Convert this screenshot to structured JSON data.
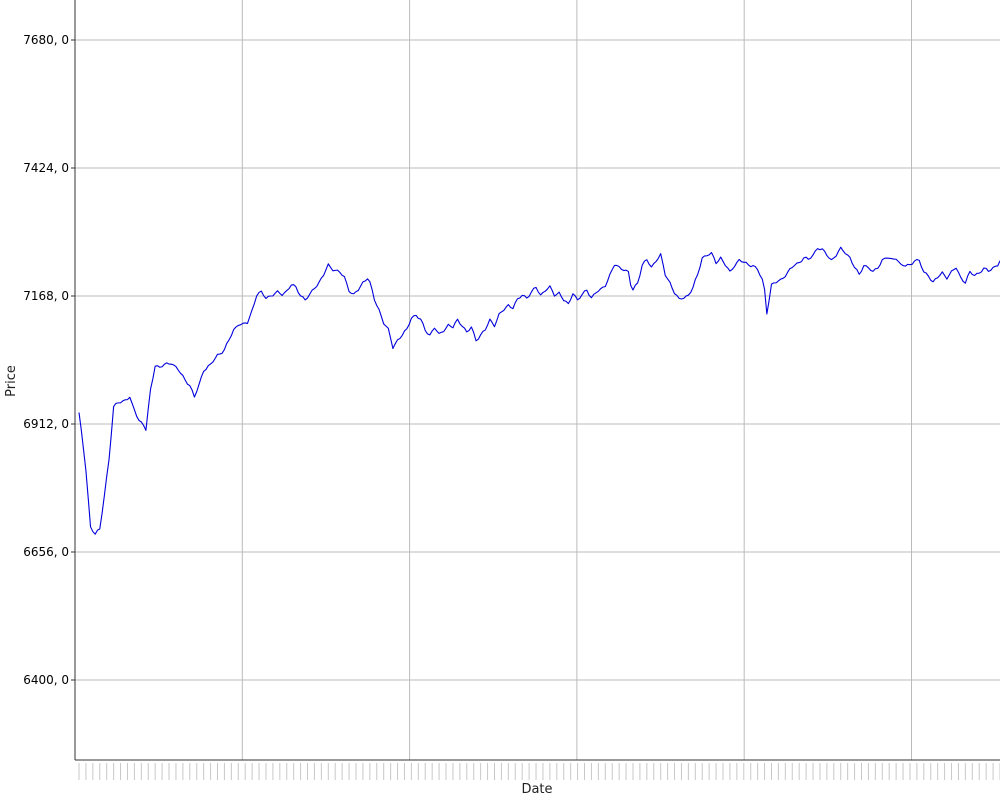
{
  "chart_data": {
    "type": "line",
    "title": "",
    "xlabel": "Date",
    "ylabel": "Price",
    "ylim": [
      6240,
      7760
    ],
    "yticks": [
      6400,
      6656,
      6912,
      7168,
      7424,
      7680
    ],
    "ytick_labels": [
      "6400, 0",
      "6656, 0",
      "6912, 0",
      "7168, 0",
      "7424, 0",
      "7680, 0"
    ],
    "grid": true,
    "line_color": "#0000dd",
    "grid_color": "#bbbbbb",
    "num_vertical_gridlines": 5,
    "num_points": 400,
    "keypoints": [
      [
        0,
        6935
      ],
      [
        3,
        6820
      ],
      [
        5,
        6706
      ],
      [
        7,
        6693
      ],
      [
        9,
        6700
      ],
      [
        11,
        6770
      ],
      [
        13,
        6842
      ],
      [
        15,
        6945
      ],
      [
        17,
        6955
      ],
      [
        19,
        6958
      ],
      [
        22,
        6965
      ],
      [
        23,
        6950
      ],
      [
        26,
        6920
      ],
      [
        28,
        6910
      ],
      [
        29,
        6900
      ],
      [
        31,
        6980
      ],
      [
        33,
        7030
      ],
      [
        35,
        7025
      ],
      [
        37,
        7030
      ],
      [
        40,
        7035
      ],
      [
        43,
        7020
      ],
      [
        46,
        7000
      ],
      [
        48,
        6990
      ],
      [
        50,
        6965
      ],
      [
        52,
        6990
      ],
      [
        54,
        7020
      ],
      [
        57,
        7030
      ],
      [
        60,
        7050
      ],
      [
        63,
        7060
      ],
      [
        65,
        7080
      ],
      [
        67,
        7100
      ],
      [
        69,
        7112
      ],
      [
        71,
        7110
      ],
      [
        73,
        7115
      ],
      [
        75,
        7140
      ],
      [
        77,
        7170
      ],
      [
        79,
        7175
      ],
      [
        81,
        7165
      ],
      [
        84,
        7170
      ],
      [
        86,
        7175
      ],
      [
        88,
        7172
      ],
      [
        90,
        7178
      ],
      [
        92,
        7190
      ],
      [
        94,
        7185
      ],
      [
        96,
        7170
      ],
      [
        98,
        7160
      ],
      [
        100,
        7170
      ],
      [
        102,
        7185
      ],
      [
        104,
        7195
      ],
      [
        106,
        7210
      ],
      [
        108,
        7230
      ],
      [
        110,
        7222
      ],
      [
        113,
        7215
      ],
      [
        115,
        7205
      ],
      [
        117,
        7180
      ],
      [
        119,
        7170
      ],
      [
        121,
        7180
      ],
      [
        123,
        7195
      ],
      [
        125,
        7205
      ],
      [
        126,
        7195
      ],
      [
        128,
        7160
      ],
      [
        130,
        7140
      ],
      [
        132,
        7115
      ],
      [
        134,
        7100
      ],
      [
        136,
        7065
      ],
      [
        138,
        7080
      ],
      [
        140,
        7090
      ],
      [
        142,
        7100
      ],
      [
        144,
        7125
      ],
      [
        146,
        7130
      ],
      [
        148,
        7120
      ],
      [
        150,
        7100
      ],
      [
        152,
        7090
      ],
      [
        154,
        7105
      ],
      [
        156,
        7090
      ],
      [
        158,
        7100
      ],
      [
        160,
        7110
      ],
      [
        162,
        7105
      ],
      [
        164,
        7120
      ],
      [
        166,
        7110
      ],
      [
        168,
        7095
      ],
      [
        170,
        7105
      ],
      [
        172,
        7080
      ],
      [
        174,
        7090
      ],
      [
        176,
        7100
      ],
      [
        178,
        7120
      ],
      [
        180,
        7110
      ],
      [
        182,
        7130
      ],
      [
        184,
        7140
      ],
      [
        186,
        7150
      ],
      [
        188,
        7145
      ],
      [
        190,
        7160
      ],
      [
        192,
        7170
      ],
      [
        194,
        7165
      ],
      [
        196,
        7175
      ],
      [
        198,
        7185
      ],
      [
        200,
        7170
      ],
      [
        202,
        7180
      ],
      [
        204,
        7185
      ],
      [
        206,
        7170
      ],
      [
        208,
        7175
      ],
      [
        210,
        7160
      ],
      [
        212,
        7150
      ],
      [
        214,
        7175
      ],
      [
        216,
        7160
      ],
      [
        218,
        7170
      ],
      [
        220,
        7180
      ],
      [
        222,
        7165
      ],
      [
        224,
        7175
      ],
      [
        226,
        7180
      ],
      [
        228,
        7190
      ],
      [
        230,
        7210
      ],
      [
        232,
        7230
      ],
      [
        234,
        7225
      ],
      [
        236,
        7222
      ],
      [
        238,
        7215
      ],
      [
        239,
        7190
      ],
      [
        240,
        7180
      ],
      [
        242,
        7195
      ],
      [
        244,
        7230
      ],
      [
        246,
        7240
      ],
      [
        248,
        7225
      ],
      [
        250,
        7240
      ],
      [
        252,
        7250
      ],
      [
        254,
        7210
      ],
      [
        256,
        7195
      ],
      [
        258,
        7175
      ],
      [
        260,
        7160
      ],
      [
        262,
        7165
      ],
      [
        264,
        7170
      ],
      [
        266,
        7185
      ],
      [
        268,
        7210
      ],
      [
        270,
        7245
      ],
      [
        272,
        7250
      ],
      [
        274,
        7252
      ],
      [
        276,
        7235
      ],
      [
        278,
        7245
      ],
      [
        280,
        7230
      ],
      [
        282,
        7215
      ],
      [
        284,
        7230
      ],
      [
        286,
        7240
      ],
      [
        288,
        7235
      ],
      [
        290,
        7230
      ],
      [
        292,
        7230
      ],
      [
        294,
        7220
      ],
      [
        296,
        7200
      ],
      [
        297,
        7180
      ],
      [
        298,
        7135
      ],
      [
        300,
        7190
      ],
      [
        302,
        7195
      ],
      [
        304,
        7200
      ],
      [
        306,
        7210
      ],
      [
        308,
        7220
      ],
      [
        310,
        7230
      ],
      [
        312,
        7235
      ],
      [
        314,
        7245
      ],
      [
        316,
        7240
      ],
      [
        318,
        7250
      ],
      [
        320,
        7265
      ],
      [
        322,
        7260
      ],
      [
        324,
        7250
      ],
      [
        326,
        7240
      ],
      [
        328,
        7250
      ],
      [
        330,
        7262
      ],
      [
        332,
        7255
      ],
      [
        334,
        7245
      ],
      [
        336,
        7225
      ],
      [
        338,
        7210
      ],
      [
        340,
        7230
      ],
      [
        342,
        7225
      ],
      [
        344,
        7215
      ],
      [
        346,
        7225
      ],
      [
        348,
        7240
      ],
      [
        350,
        7245
      ],
      [
        352,
        7240
      ],
      [
        354,
        7245
      ],
      [
        356,
        7230
      ],
      [
        358,
        7228
      ],
      [
        360,
        7230
      ],
      [
        362,
        7240
      ],
      [
        364,
        7238
      ],
      [
        366,
        7215
      ],
      [
        368,
        7210
      ],
      [
        370,
        7195
      ],
      [
        372,
        7205
      ],
      [
        374,
        7215
      ],
      [
        376,
        7205
      ],
      [
        378,
        7215
      ],
      [
        380,
        7225
      ],
      [
        382,
        7205
      ],
      [
        384,
        7195
      ],
      [
        386,
        7215
      ],
      [
        388,
        7210
      ],
      [
        390,
        7215
      ],
      [
        392,
        7222
      ],
      [
        394,
        7218
      ],
      [
        396,
        7225
      ],
      [
        398,
        7230
      ],
      [
        399,
        7238
      ]
    ]
  }
}
